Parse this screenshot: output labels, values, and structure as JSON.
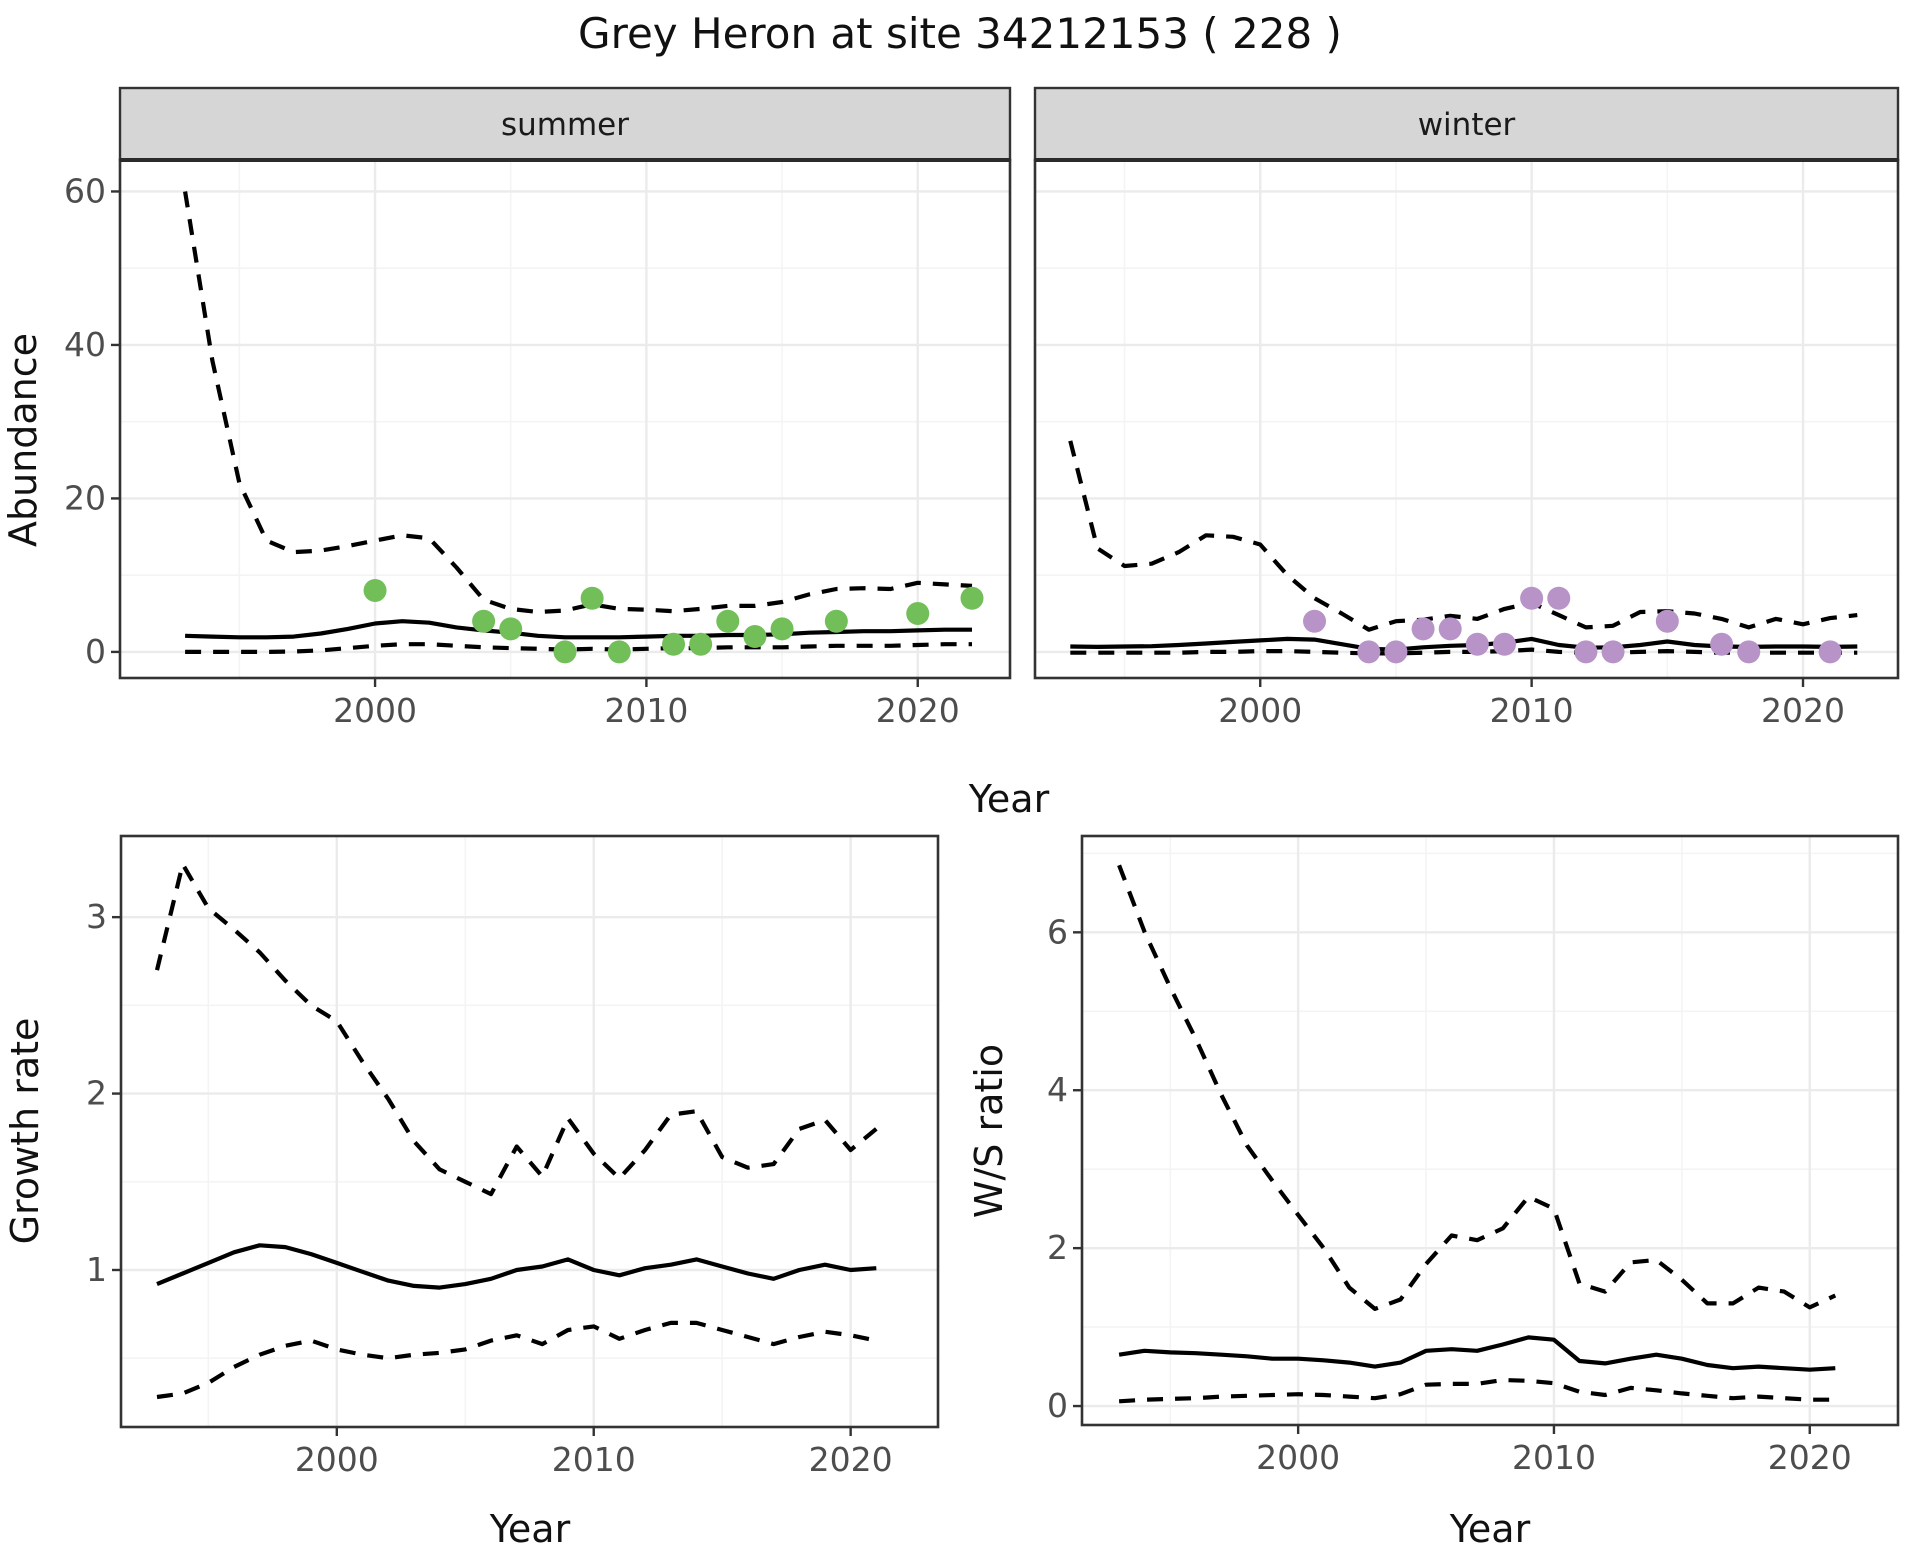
{
  "title": "Grey Heron at site 34212153 ( 228 )",
  "labels": {
    "y_top": "Abundance",
    "x_top": "Year",
    "y_growth": "Growth rate",
    "x_growth": "Year",
    "y_ws": "W/S ratio",
    "x_ws": "Year"
  },
  "colors": {
    "summer_points": "#72bf5a",
    "winter_points": "#b793c8",
    "line": "#000000",
    "strip_bg": "#d6d6d6",
    "panel_border": "#333333",
    "grid_major": "#ebebeb",
    "grid_minor": "#f4f4f4",
    "tick_text": "#4d4d4d"
  },
  "chart_data": [
    {
      "id": "summer",
      "type": "line",
      "facet_label": "summer",
      "xlabel": "Year",
      "ylabel": "Abundance",
      "xlim": [
        1990.6,
        2023.4
      ],
      "ylim": [
        -3.4,
        64.1
      ],
      "xticks": [
        2000,
        2010,
        2020
      ],
      "xticks_minor": [
        1995,
        2005,
        2015
      ],
      "yticks": [
        0,
        20,
        40,
        60
      ],
      "yticks_minor": [
        10,
        30,
        50
      ],
      "show_ylabels": true,
      "series": [
        {
          "name": "upper_ci",
          "style": "dashed",
          "x": [
            1993,
            1994,
            1995,
            1996,
            1997,
            1998,
            1999,
            2000,
            2001,
            2002,
            2003,
            2004,
            2005,
            2006,
            2007,
            2008,
            2009,
            2010,
            2011,
            2012,
            2013,
            2014,
            2015,
            2016,
            2017,
            2018,
            2019,
            2020,
            2021,
            2022
          ],
          "y": [
            60,
            38,
            22,
            14.5,
            13,
            13.2,
            13.8,
            14.5,
            15.2,
            14.8,
            11,
            6.8,
            5.6,
            5.2,
            5.4,
            6.2,
            5.6,
            5.5,
            5.3,
            5.6,
            6,
            6,
            6.5,
            7.5,
            8.2,
            8.3,
            8.2,
            9,
            8.8,
            8.6
          ]
        },
        {
          "name": "median",
          "style": "solid",
          "x": [
            1993,
            1994,
            1995,
            1996,
            1997,
            1998,
            1999,
            2000,
            2001,
            2002,
            2003,
            2004,
            2005,
            2006,
            2007,
            2008,
            2009,
            2010,
            2011,
            2012,
            2013,
            2014,
            2015,
            2016,
            2017,
            2018,
            2019,
            2020,
            2021,
            2022
          ],
          "y": [
            2.1,
            2,
            1.9,
            1.9,
            2,
            2.4,
            3,
            3.7,
            4,
            3.8,
            3.2,
            2.8,
            2.5,
            2.1,
            1.9,
            1.9,
            1.9,
            2,
            2.1,
            2.1,
            2.2,
            2.2,
            2.3,
            2.5,
            2.6,
            2.7,
            2.7,
            2.8,
            2.9,
            2.9
          ]
        },
        {
          "name": "lower_ci",
          "style": "dashed",
          "x": [
            1993,
            1994,
            1995,
            1996,
            1997,
            1998,
            1999,
            2000,
            2001,
            2002,
            2003,
            2004,
            2005,
            2006,
            2007,
            2008,
            2009,
            2010,
            2011,
            2012,
            2013,
            2014,
            2015,
            2016,
            2017,
            2018,
            2019,
            2020,
            2021,
            2022
          ],
          "y": [
            0,
            0,
            0,
            0,
            0.05,
            0.2,
            0.5,
            0.8,
            1,
            1,
            0.8,
            0.6,
            0.5,
            0.4,
            0.3,
            0.4,
            0.3,
            0.4,
            0.5,
            0.5,
            0.6,
            0.6,
            0.6,
            0.7,
            0.8,
            0.8,
            0.8,
            0.9,
            1,
            1
          ]
        },
        {
          "name": "observations",
          "style": "points",
          "color_key": "summer_points",
          "x": [
            2000,
            2004,
            2005,
            2007,
            2008,
            2009,
            2011,
            2012,
            2013,
            2014,
            2015,
            2017,
            2020,
            2022
          ],
          "y": [
            8,
            4,
            3,
            0,
            7,
            0,
            1,
            1,
            4,
            2,
            3,
            4,
            5,
            7
          ]
        }
      ]
    },
    {
      "id": "winter",
      "type": "line",
      "facet_label": "winter",
      "xlabel": "Year",
      "ylabel": "Abundance",
      "xlim": [
        1991.7,
        2023.5
      ],
      "ylim": [
        -3.4,
        64.1
      ],
      "xticks": [
        2000,
        2010,
        2020
      ],
      "xticks_minor": [
        1995,
        2005,
        2015
      ],
      "yticks": [
        0,
        20,
        40,
        60
      ],
      "yticks_minor": [
        10,
        30,
        50
      ],
      "show_ylabels": false,
      "series": [
        {
          "name": "upper_ci",
          "style": "dashed",
          "x": [
            1993,
            1994,
            1995,
            1996,
            1997,
            1998,
            1999,
            2000,
            2001,
            2002,
            2003,
            2004,
            2005,
            2006,
            2007,
            2008,
            2009,
            2010,
            2011,
            2012,
            2013,
            2014,
            2015,
            2016,
            2017,
            2018,
            2019,
            2020,
            2021,
            2022
          ],
          "y": [
            27.5,
            13.5,
            11.2,
            11.5,
            13,
            15.2,
            15,
            14,
            10,
            7,
            5,
            2.9,
            4,
            4.2,
            4.7,
            4.3,
            5.6,
            6.4,
            4.8,
            3.2,
            3.4,
            5.2,
            5.3,
            5,
            4.3,
            3.2,
            4.3,
            3.6,
            4.4,
            4.8
          ]
        },
        {
          "name": "median",
          "style": "solid",
          "x": [
            1993,
            1994,
            1995,
            1996,
            1997,
            1998,
            1999,
            2000,
            2001,
            2002,
            2003,
            2004,
            2005,
            2006,
            2007,
            2008,
            2009,
            2010,
            2011,
            2012,
            2013,
            2014,
            2015,
            2016,
            2017,
            2018,
            2019,
            2020,
            2021,
            2022
          ],
          "y": [
            0.7,
            0.65,
            0.7,
            0.75,
            0.9,
            1.1,
            1.3,
            1.5,
            1.7,
            1.6,
            1,
            0.4,
            0.3,
            0.6,
            0.8,
            0.9,
            1.2,
            1.7,
            0.9,
            0.55,
            0.6,
            0.9,
            1.35,
            0.9,
            0.7,
            0.65,
            0.7,
            0.7,
            0.65,
            0.7
          ]
        },
        {
          "name": "lower_ci",
          "style": "dashed",
          "x": [
            1993,
            1994,
            1995,
            1996,
            1997,
            1998,
            1999,
            2000,
            2001,
            2002,
            2003,
            2004,
            2005,
            2006,
            2007,
            2008,
            2009,
            2010,
            2011,
            2012,
            2013,
            2014,
            2015,
            2016,
            2017,
            2018,
            2019,
            2020,
            2021,
            2022
          ],
          "y": [
            -0.1,
            -0.1,
            -0.1,
            -0.1,
            -0.1,
            0,
            0,
            0.1,
            0.1,
            0,
            -0.1,
            -0.2,
            -0.2,
            -0.1,
            0,
            0,
            0.1,
            0.3,
            0,
            -0.1,
            -0.1,
            0,
            0.1,
            0,
            -0.1,
            -0.1,
            -0.1,
            -0.1,
            -0.1,
            -0.1
          ]
        },
        {
          "name": "observations",
          "style": "points",
          "color_key": "winter_points",
          "x": [
            2002,
            2004,
            2005,
            2006,
            2007,
            2008,
            2009,
            2010,
            2011,
            2012,
            2013,
            2015,
            2017,
            2018,
            2021
          ],
          "y": [
            4,
            0,
            0,
            3,
            3,
            1,
            1,
            7,
            7,
            0,
            0,
            4,
            1,
            0,
            0
          ]
        }
      ]
    },
    {
      "id": "growth",
      "type": "line",
      "facet_label": null,
      "xlabel": "Year",
      "ylabel": "Growth rate",
      "xlim": [
        1991.6,
        2023.4
      ],
      "ylim": [
        0.11,
        3.46
      ],
      "xticks": [
        2000,
        2010,
        2020
      ],
      "xticks_minor": [
        1995,
        2005,
        2015
      ],
      "yticks": [
        1,
        2,
        3
      ],
      "yticks_minor": [
        0.5,
        1.5,
        2.5
      ],
      "show_ylabels": true,
      "series": [
        {
          "name": "upper_ci",
          "style": "dashed",
          "x": [
            1993,
            1994,
            1995,
            1996,
            1997,
            1998,
            1999,
            2000,
            2001,
            2002,
            2003,
            2004,
            2005,
            2006,
            2007,
            2008,
            2009,
            2010,
            2011,
            2012,
            2013,
            2014,
            2015,
            2016,
            2017,
            2018,
            2019,
            2020,
            2021
          ],
          "y": [
            2.7,
            3.3,
            3.05,
            2.93,
            2.8,
            2.64,
            2.5,
            2.41,
            2.18,
            1.97,
            1.73,
            1.57,
            1.5,
            1.43,
            1.7,
            1.53,
            1.86,
            1.66,
            1.52,
            1.68,
            1.88,
            1.9,
            1.64,
            1.58,
            1.6,
            1.8,
            1.85,
            1.68,
            1.8
          ]
        },
        {
          "name": "median",
          "style": "solid",
          "x": [
            1993,
            1994,
            1995,
            1996,
            1997,
            1998,
            1999,
            2000,
            2001,
            2002,
            2003,
            2004,
            2005,
            2006,
            2007,
            2008,
            2009,
            2010,
            2011,
            2012,
            2013,
            2014,
            2015,
            2016,
            2017,
            2018,
            2019,
            2020,
            2021
          ],
          "y": [
            0.92,
            0.98,
            1.04,
            1.1,
            1.14,
            1.13,
            1.09,
            1.04,
            0.99,
            0.94,
            0.91,
            0.9,
            0.92,
            0.95,
            1,
            1.02,
            1.06,
            1,
            0.97,
            1.01,
            1.03,
            1.06,
            1.02,
            0.98,
            0.95,
            1,
            1.03,
            1,
            1.01
          ]
        },
        {
          "name": "lower_ci",
          "style": "dashed",
          "x": [
            1993,
            1994,
            1995,
            1996,
            1997,
            1998,
            1999,
            2000,
            2001,
            2002,
            2003,
            2004,
            2005,
            2006,
            2007,
            2008,
            2009,
            2010,
            2011,
            2012,
            2013,
            2014,
            2015,
            2016,
            2017,
            2018,
            2019,
            2020,
            2021
          ],
          "y": [
            0.28,
            0.3,
            0.36,
            0.45,
            0.52,
            0.57,
            0.6,
            0.55,
            0.52,
            0.5,
            0.52,
            0.53,
            0.55,
            0.6,
            0.63,
            0.58,
            0.66,
            0.68,
            0.61,
            0.66,
            0.7,
            0.7,
            0.66,
            0.62,
            0.58,
            0.62,
            0.65,
            0.63,
            0.6
          ]
        }
      ]
    },
    {
      "id": "ws",
      "type": "line",
      "facet_label": null,
      "xlabel": "Year",
      "ylabel": "W/S ratio",
      "xlim": [
        1991.55,
        2023.45
      ],
      "ylim": [
        -0.24,
        7.22
      ],
      "xticks": [
        2000,
        2010,
        2020
      ],
      "xticks_minor": [
        1995,
        2005,
        2015
      ],
      "yticks": [
        0,
        2,
        4,
        6
      ],
      "yticks_minor": [
        1,
        3,
        5,
        7
      ],
      "show_ylabels": true,
      "series": [
        {
          "name": "upper_ci",
          "style": "dashed",
          "x": [
            1993,
            1994,
            1995,
            1996,
            1997,
            1998,
            1999,
            2000,
            2001,
            2002,
            2003,
            2004,
            2005,
            2006,
            2007,
            2008,
            2009,
            2010,
            2011,
            2012,
            2013,
            2014,
            2015,
            2016,
            2017,
            2018,
            2019,
            2020,
            2021
          ],
          "y": [
            6.85,
            6,
            5.3,
            4.65,
            3.94,
            3.3,
            2.85,
            2.42,
            2,
            1.5,
            1.23,
            1.35,
            1.8,
            2.16,
            2.1,
            2.25,
            2.65,
            2.5,
            1.55,
            1.45,
            1.82,
            1.85,
            1.6,
            1.3,
            1.3,
            1.5,
            1.45,
            1.25,
            1.4
          ]
        },
        {
          "name": "median",
          "style": "solid",
          "x": [
            1993,
            1994,
            1995,
            1996,
            1997,
            1998,
            1999,
            2000,
            2001,
            2002,
            2003,
            2004,
            2005,
            2006,
            2007,
            2008,
            2009,
            2010,
            2011,
            2012,
            2013,
            2014,
            2015,
            2016,
            2017,
            2018,
            2019,
            2020,
            2021
          ],
          "y": [
            0.65,
            0.7,
            0.68,
            0.67,
            0.65,
            0.63,
            0.6,
            0.6,
            0.58,
            0.55,
            0.5,
            0.55,
            0.7,
            0.72,
            0.7,
            0.78,
            0.87,
            0.84,
            0.57,
            0.54,
            0.6,
            0.65,
            0.6,
            0.52,
            0.48,
            0.5,
            0.48,
            0.46,
            0.48
          ]
        },
        {
          "name": "lower_ci",
          "style": "dashed",
          "x": [
            1993,
            1994,
            1995,
            1996,
            1997,
            1998,
            1999,
            2000,
            2001,
            2002,
            2003,
            2004,
            2005,
            2006,
            2007,
            2008,
            2009,
            2010,
            2011,
            2012,
            2013,
            2014,
            2015,
            2016,
            2017,
            2018,
            2019,
            2020,
            2021
          ],
          "y": [
            0.06,
            0.08,
            0.09,
            0.1,
            0.12,
            0.13,
            0.14,
            0.15,
            0.14,
            0.12,
            0.1,
            0.15,
            0.27,
            0.28,
            0.28,
            0.33,
            0.32,
            0.29,
            0.18,
            0.14,
            0.23,
            0.2,
            0.16,
            0.13,
            0.1,
            0.12,
            0.1,
            0.08,
            0.08
          ]
        }
      ]
    }
  ]
}
